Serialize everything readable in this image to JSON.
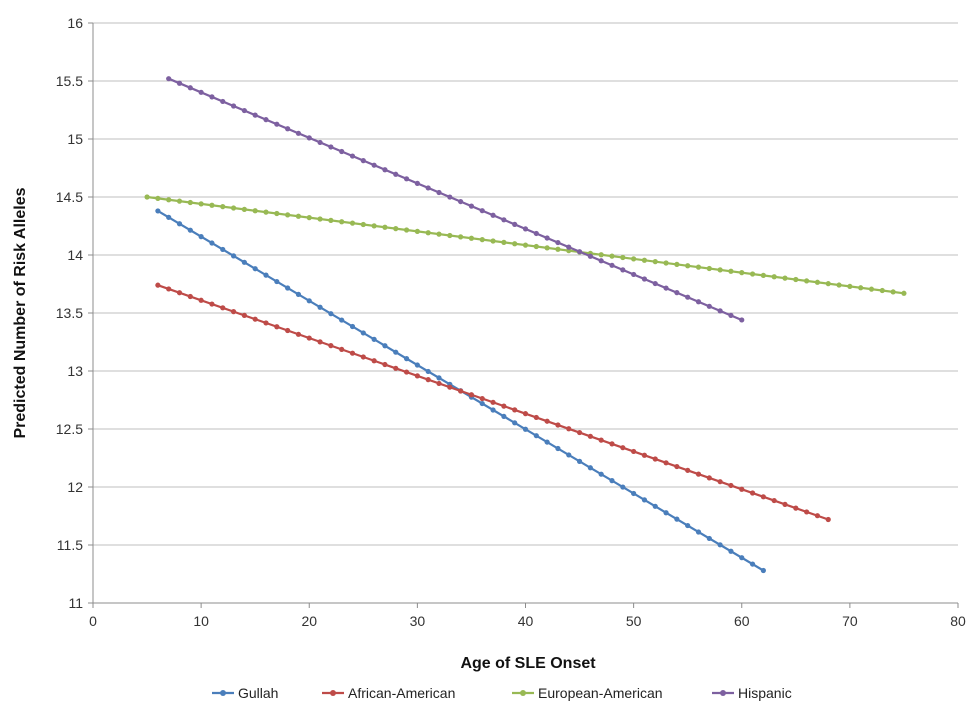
{
  "chart_data": {
    "type": "line",
    "title": "",
    "xlabel": "Age of SLE Onset",
    "ylabel": "Predicted Number of Risk Alleles",
    "xlim": [
      0,
      80
    ],
    "ylim": [
      11,
      16
    ],
    "xticks": [
      "0",
      "10",
      "20",
      "30",
      "40",
      "50",
      "60",
      "70",
      "80"
    ],
    "yticks": [
      "11",
      "11.5",
      "12",
      "12.5",
      "13",
      "13.5",
      "14",
      "14.5",
      "15",
      "15.5",
      "16"
    ],
    "grid": "horizontal",
    "legend_position": "bottom",
    "series": [
      {
        "name": "Gullah",
        "color": "#4a7ebb",
        "x_start": 6,
        "x_end": 62,
        "y_start": 14.38,
        "y_end": 11.28
      },
      {
        "name": "African-American",
        "color": "#be4b48",
        "x_start": 6,
        "x_end": 68,
        "y_start": 13.74,
        "y_end": 11.72
      },
      {
        "name": "European-American",
        "color": "#98b954",
        "x_start": 5,
        "x_end": 75,
        "y_start": 14.5,
        "y_end": 13.67
      },
      {
        "name": "Hispanic",
        "color": "#7d60a0",
        "x_start": 7,
        "x_end": 60,
        "y_start": 15.52,
        "y_end": 13.44
      }
    ]
  }
}
